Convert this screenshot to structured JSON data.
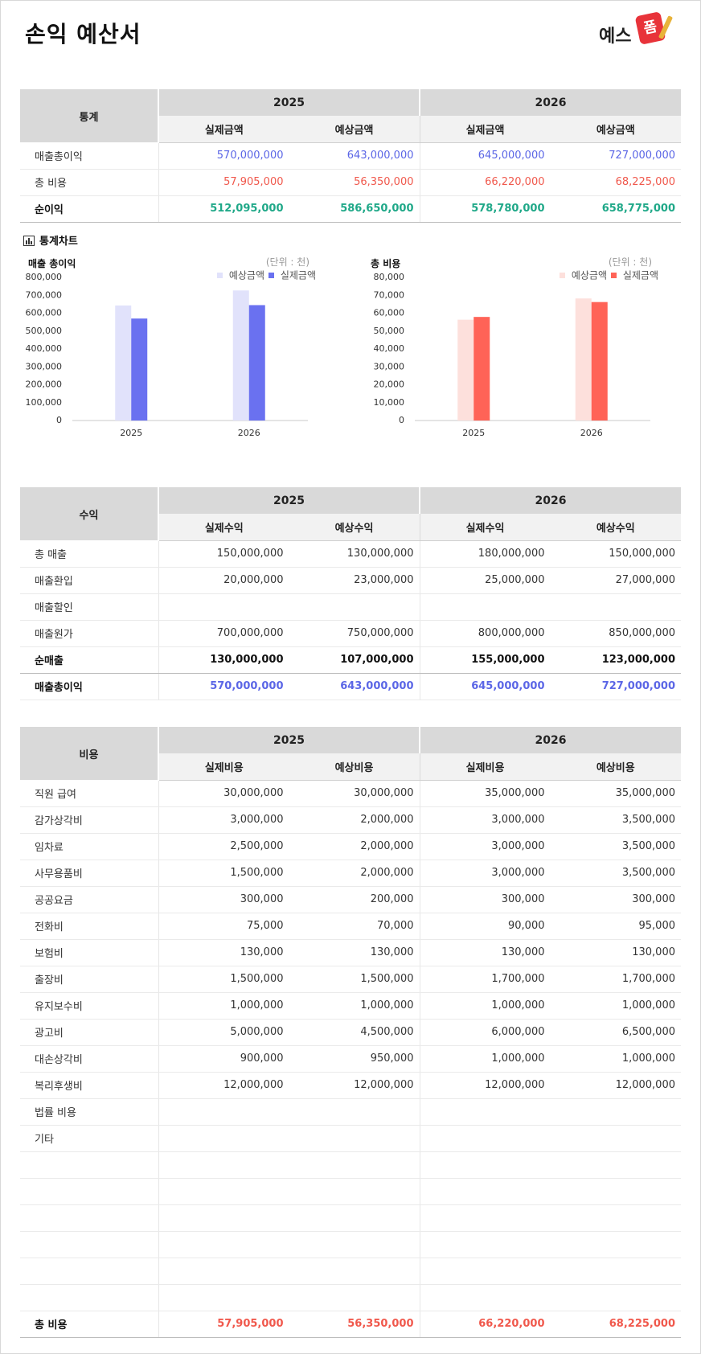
{
  "title": "손익 예산서",
  "logo": {
    "text": "예스",
    "badge": "폼"
  },
  "stats": {
    "corner": "통계",
    "years": [
      "2025",
      "2026"
    ],
    "sub": [
      "실제금액",
      "예상금액",
      "실제금액",
      "예상금액"
    ],
    "rows": [
      {
        "label": "매출총이익",
        "values": [
          "570,000,000",
          "643,000,000",
          "645,000,000",
          "727,000,000"
        ],
        "color": "#5b66e6"
      },
      {
        "label": "총 비용",
        "values": [
          "57,905,000",
          "56,350,000",
          "66,220,000",
          "68,225,000"
        ],
        "color": "#f0584c"
      }
    ],
    "total": {
      "label": "순이익",
      "values": [
        "512,095,000",
        "586,650,000",
        "578,780,000",
        "658,775,000"
      ],
      "color": "#1fa888"
    }
  },
  "chart_section_title": "통계차트",
  "chart_data": [
    {
      "type": "bar",
      "title": "매출 총이익",
      "unit_note": "(단위 : 천)",
      "categories": [
        "2025",
        "2026"
      ],
      "series": [
        {
          "name": "예상금액",
          "values": [
            643000,
            727000
          ],
          "color": "#e1e2fb"
        },
        {
          "name": "실제금액",
          "values": [
            570000,
            645000
          ],
          "color": "#6a71f0"
        }
      ],
      "ylim": [
        0,
        800000
      ],
      "yticks": [
        "0",
        "100,000",
        "200,000",
        "300,000",
        "400,000",
        "500,000",
        "600,000",
        "700,000",
        "800,000"
      ],
      "legend": "top-right",
      "grid": false
    },
    {
      "type": "bar",
      "title": "총 비용",
      "unit_note": "(단위 : 천)",
      "categories": [
        "2025",
        "2026"
      ],
      "series": [
        {
          "name": "예상금액",
          "values": [
            56350,
            68225
          ],
          "color": "#fde0dc"
        },
        {
          "name": "실제금액",
          "values": [
            57905,
            66220
          ],
          "color": "#ff6357"
        }
      ],
      "ylim": [
        0,
        80000
      ],
      "yticks": [
        "0",
        "10,000",
        "20,000",
        "30,000",
        "40,000",
        "50,000",
        "60,000",
        "70,000",
        "80,000"
      ],
      "legend": "top-right",
      "grid": false
    }
  ],
  "revenue": {
    "corner": "수익",
    "years": [
      "2025",
      "2026"
    ],
    "sub": [
      "실제수익",
      "예상수익",
      "실제수익",
      "예상수익"
    ],
    "rows": [
      {
        "label": "총 매출",
        "values": [
          "150,000,000",
          "130,000,000",
          "180,000,000",
          "150,000,000"
        ]
      },
      {
        "label": "매출환입",
        "values": [
          "20,000,000",
          "23,000,000",
          "25,000,000",
          "27,000,000"
        ]
      },
      {
        "label": "매출할인",
        "values": [
          "",
          "",
          "",
          ""
        ]
      },
      {
        "label": "매출원가",
        "values": [
          "700,000,000",
          "750,000,000",
          "800,000,000",
          "850,000,000"
        ]
      }
    ],
    "net": {
      "label": "순매출",
      "values": [
        "130,000,000",
        "107,000,000",
        "155,000,000",
        "123,000,000"
      ]
    },
    "gross": {
      "label": "매출총이익",
      "values": [
        "570,000,000",
        "643,000,000",
        "645,000,000",
        "727,000,000"
      ]
    }
  },
  "expenses": {
    "corner": "비용",
    "years": [
      "2025",
      "2026"
    ],
    "sub": [
      "실제비용",
      "예상비용",
      "실제비용",
      "예상비용"
    ],
    "rows": [
      {
        "label": "직원 급여",
        "values": [
          "30,000,000",
          "30,000,000",
          "35,000,000",
          "35,000,000"
        ]
      },
      {
        "label": "감가상각비",
        "values": [
          "3,000,000",
          "2,000,000",
          "3,000,000",
          "3,500,000"
        ]
      },
      {
        "label": "임차료",
        "values": [
          "2,500,000",
          "2,000,000",
          "3,000,000",
          "3,500,000"
        ]
      },
      {
        "label": "사무용품비",
        "values": [
          "1,500,000",
          "2,000,000",
          "3,000,000",
          "3,500,000"
        ]
      },
      {
        "label": "공공요금",
        "values": [
          "300,000",
          "200,000",
          "300,000",
          "300,000"
        ]
      },
      {
        "label": "전화비",
        "values": [
          "75,000",
          "70,000",
          "90,000",
          "95,000"
        ]
      },
      {
        "label": "보험비",
        "values": [
          "130,000",
          "130,000",
          "130,000",
          "130,000"
        ]
      },
      {
        "label": "출장비",
        "values": [
          "1,500,000",
          "1,500,000",
          "1,700,000",
          "1,700,000"
        ]
      },
      {
        "label": "유지보수비",
        "values": [
          "1,000,000",
          "1,000,000",
          "1,000,000",
          "1,000,000"
        ]
      },
      {
        "label": "광고비",
        "values": [
          "5,000,000",
          "4,500,000",
          "6,000,000",
          "6,500,000"
        ]
      },
      {
        "label": "대손상각비",
        "values": [
          "900,000",
          "950,000",
          "1,000,000",
          "1,000,000"
        ]
      },
      {
        "label": "복리후생비",
        "values": [
          "12,000,000",
          "12,000,000",
          "12,000,000",
          "12,000,000"
        ]
      },
      {
        "label": "법률 비용",
        "values": [
          "",
          "",
          "",
          ""
        ]
      },
      {
        "label": "기타",
        "values": [
          "",
          "",
          "",
          ""
        ]
      },
      {
        "label": "",
        "values": [
          "",
          "",
          "",
          ""
        ]
      },
      {
        "label": "",
        "values": [
          "",
          "",
          "",
          ""
        ]
      },
      {
        "label": "",
        "values": [
          "",
          "",
          "",
          ""
        ]
      },
      {
        "label": "",
        "values": [
          "",
          "",
          "",
          ""
        ]
      },
      {
        "label": "",
        "values": [
          "",
          "",
          "",
          ""
        ]
      },
      {
        "label": "",
        "values": [
          "",
          "",
          "",
          ""
        ]
      }
    ],
    "total": {
      "label": "총 비용",
      "values": [
        "57,905,000",
        "56,350,000",
        "66,220,000",
        "68,225,000"
      ]
    }
  }
}
